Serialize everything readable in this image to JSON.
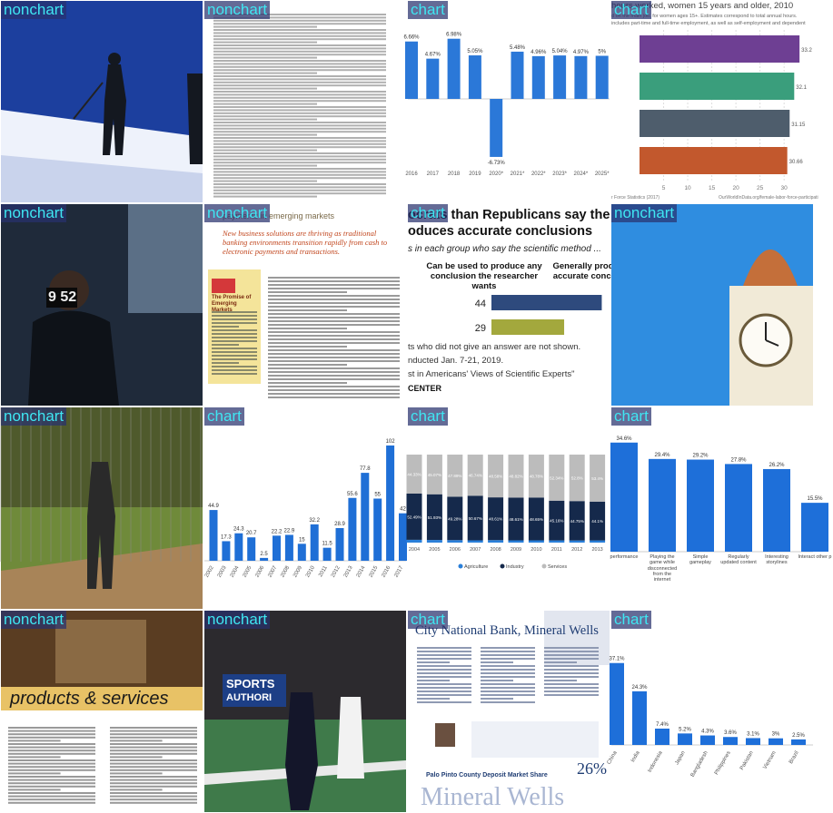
{
  "tiles": [
    {
      "label": "nonchart"
    },
    {
      "label": "nonchart"
    },
    {
      "label": "chart",
      "chart": {
        "type": "bar",
        "categories": [
          "2016",
          "2017",
          "2018",
          "2019",
          "2020*",
          "2021*",
          "2022*",
          "2023*",
          "2024*",
          "2025*"
        ],
        "values": [
          6.66,
          4.67,
          6.98,
          5.05,
          -6.73,
          5.48,
          4.96,
          5.04,
          4.97,
          5
        ],
        "value_labels": [
          "6.66%",
          "4.67%",
          "6.98%",
          "5.05%",
          "-6.73%",
          "5.48%",
          "4.96%",
          "5.04%",
          "4.97%",
          "5%"
        ],
        "color": "#2b78d8",
        "ylim": [
          -8,
          8
        ]
      }
    },
    {
      "label": "chart",
      "chart": {
        "type": "hbar",
        "title": "hours worked, women 15 years and older, 2010",
        "subtitle": "d on the main job, for women ages 15+. Estimates correspond to total annual hours.",
        "note": "includes part-time and full-time employment, as well as self-employment and dependent",
        "values": [
          33.2,
          32.1,
          31.15,
          30.66
        ],
        "colors": [
          "#6e3f93",
          "#3a9e7c",
          "#4e5d6c",
          "#c2582d"
        ],
        "xlim": [
          0,
          36
        ],
        "xticks": [
          5,
          10,
          15,
          20,
          25,
          30
        ],
        "source": "r Force Statistics (2017)",
        "url": "OurWorldInData.org/female-labor-force-participati"
      }
    },
    {
      "label": "nonchart",
      "texts": [
        "9 52"
      ]
    },
    {
      "label": "nonchart",
      "texts": [
        "payments in emerging markets",
        "New business solutions are thriving as traditional banking environments transition rapidly from cash to electronic payments and transactions.",
        "The Promise of Emerging Markets"
      ]
    },
    {
      "label": "chart",
      "chart": {
        "type": "pew",
        "title": [
          "ocrats than Republicans say the sc",
          "oduces accurate conclusions"
        ],
        "subtitle": "s in each group who say the scientific method ...",
        "headers": [
          "Can be used to produce any conclusion the researcher wants",
          "Generally prod accurate concl"
        ],
        "values": [
          44,
          29
        ],
        "colors": [
          "#2e4a7d",
          "#a3a83d"
        ],
        "notes": [
          "ts who did not give an answer are not shown.",
          "nducted Jan. 7-21, 2019.",
          "st in Americans' Views of Scientific Experts\""
        ],
        "footer": "CENTER"
      }
    },
    {
      "label": "nonchart"
    },
    {
      "label": "nonchart"
    },
    {
      "label": "chart",
      "chart": {
        "type": "bar",
        "categories": [
          "2002",
          "2003",
          "2004",
          "2005",
          "2006",
          "2007",
          "2008",
          "2009",
          "2010",
          "2011",
          "2012",
          "2013",
          "2014",
          "2015",
          "2016",
          "2017"
        ],
        "values": [
          44.9,
          17.3,
          24.3,
          20.7,
          2.5,
          22.2,
          22.9,
          15,
          32.2,
          11.5,
          28.9,
          55.6,
          77.8,
          55,
          102,
          42
        ],
        "color": "#1f6fd6",
        "ylim": [
          0,
          110
        ]
      }
    },
    {
      "label": "chart",
      "chart": {
        "type": "stacked",
        "categories": [
          "2004",
          "2005",
          "2006",
          "2007",
          "2008",
          "2009",
          "2010",
          "2011",
          "2012",
          "2013"
        ],
        "ylim": [
          0,
          100
        ],
        "series": [
          {
            "name": "Agriculture",
            "color": "#2a7fd9",
            "values": [
              3.18,
              3.0,
              2.83,
              2.59,
              2.81,
              2.57,
              2.57,
              2.5,
              2.45,
              2.5
            ]
          },
          {
            "name": "Industry",
            "color": "#15294b",
            "values": [
              52.49,
              51.93,
              49.28,
              50.67,
              48.61,
              48.61,
              48.65,
              45.16,
              44.75,
              44.1
            ],
            "value_labels": [
              "52.49%",
              "51.93%",
              "49.28%",
              "50.67%",
              "48.61%",
              "48.61%",
              "48.65%",
              "45.16%",
              "44.75%",
              "44.1%"
            ]
          },
          {
            "name": "Services",
            "color": "#bcbcbc",
            "values": [
              44.33,
              45.07,
              47.89,
              46.74,
              48.58,
              48.82,
              48.78,
              52.34,
              52.8,
              53.4
            ],
            "value_labels": [
              "44.33%",
              "45.07%",
              "47.89%",
              "46.74%",
              "48.58%",
              "48.82%",
              "48.78%",
              "52.34%",
              "52.8%",
              "53.4%"
            ]
          }
        ]
      }
    },
    {
      "label": "chart",
      "chart": {
        "type": "bar",
        "categories": [
          "performance",
          "Playing the game while disconnected from the internet",
          "Simple gameplay",
          "Regularly updated content",
          "Interesting storylines",
          "Interact other p"
        ],
        "values": [
          34.6,
          29.4,
          29.2,
          27.8,
          26.2,
          15.5
        ],
        "value_labels": [
          "34.6%",
          "29.4%",
          "29.2%",
          "27.8%",
          "26.2%",
          "15.5%"
        ],
        "color": "#1e6fd9",
        "ylim": [
          0,
          40
        ]
      }
    },
    {
      "label": "nonchart",
      "texts": [
        "products & services"
      ]
    },
    {
      "label": "nonchart",
      "texts": [
        "SPORTS",
        "AUTHORI"
      ]
    },
    {
      "label": "chart",
      "texts": [
        "City National Bank, Mineral Wells",
        "Palo Pinto County Deposit Market Share",
        "26%",
        "Mineral Wells"
      ]
    },
    {
      "label": "chart",
      "chart": {
        "type": "bar",
        "categories": [
          "China",
          "India",
          "Indonesia",
          "Japan",
          "Bangladesh",
          "Philippines",
          "Pakistan",
          "Vietnam",
          "Brazil"
        ],
        "values": [
          37.1,
          24.3,
          7.4,
          5.2,
          4.3,
          3.6,
          3.1,
          3,
          2.5
        ],
        "value_labels": [
          "37.1%",
          "24.3%",
          "7.4%",
          "5.2%",
          "4.3%",
          "3.6%",
          "3.1%",
          "3%",
          "2.5%"
        ],
        "color": "#1e6fd9",
        "ylim": [
          0,
          60
        ]
      }
    }
  ]
}
